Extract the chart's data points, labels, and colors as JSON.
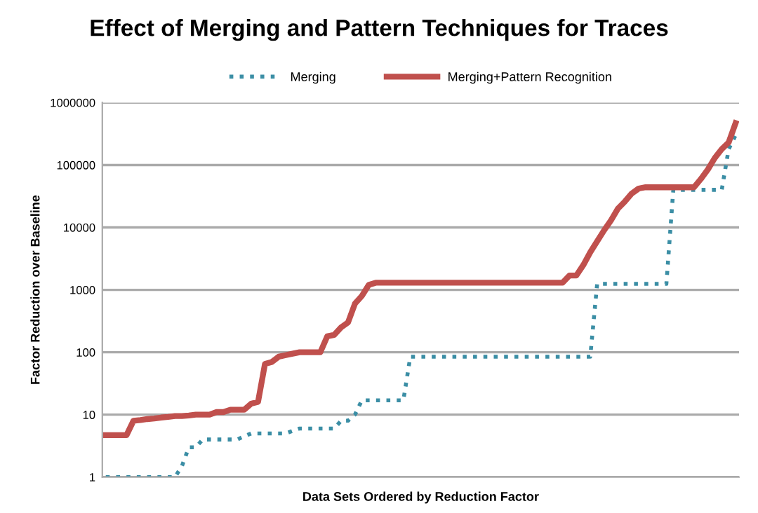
{
  "chart_data": {
    "type": "line",
    "title": "Effect of Merging and Pattern Techniques for Traces",
    "xlabel": "Data Sets Ordered by Reduction Factor",
    "ylabel": "Factor Reduction over Baseline",
    "categories": [
      null,
      null,
      null,
      null,
      null,
      null,
      null,
      null,
      null,
      null,
      null,
      null,
      null,
      null,
      null,
      null,
      null,
      null,
      null,
      null,
      null,
      null,
      null,
      null,
      null,
      null,
      null,
      null,
      null,
      null,
      null,
      null,
      null,
      null,
      null,
      null,
      null,
      null,
      null,
      null,
      null,
      null,
      null,
      null,
      null,
      null,
      null,
      null,
      null,
      null,
      null,
      null,
      null,
      null,
      null,
      null,
      null,
      null,
      null,
      null,
      null,
      null,
      null,
      null,
      null,
      null,
      null,
      null,
      null,
      null,
      null,
      null,
      null,
      null,
      null,
      null,
      null,
      null,
      null,
      null,
      null,
      null,
      null,
      null,
      null,
      null,
      null,
      null,
      null,
      null,
      null,
      null
    ],
    "series": [
      {
        "name": "Merging",
        "color": "#3b8ea5",
        "line_style": "dotted",
        "values": [
          1,
          1,
          1,
          1,
          1,
          1,
          1,
          1,
          1,
          1,
          1,
          1.5,
          3,
          3,
          4,
          4,
          4,
          4,
          4,
          4,
          4.5,
          5,
          5,
          5,
          5,
          5,
          5,
          5.5,
          6,
          6,
          6,
          6,
          6,
          6,
          8,
          8,
          10,
          17,
          17,
          17,
          17,
          17,
          17,
          17,
          85,
          85,
          85,
          85,
          85,
          85,
          85,
          85,
          85,
          85,
          85,
          85,
          85,
          85,
          85,
          85,
          85,
          85,
          85,
          85,
          85,
          85,
          85,
          85,
          85,
          85,
          85,
          1250,
          1250,
          1250,
          1250,
          1250,
          1250,
          1250,
          1250,
          1250,
          1250,
          1250,
          40000,
          40000,
          40000,
          40000,
          40000,
          40000,
          40000,
          40000,
          180000,
          300000
        ]
      },
      {
        "name": "Merging+Pattern Recognition",
        "color": "#c0504d",
        "line_style": "solid",
        "values": [
          4.7,
          4.7,
          4.7,
          4.7,
          8,
          8.2,
          8.5,
          8.7,
          9,
          9.2,
          9.5,
          9.5,
          9.7,
          10,
          10,
          10,
          11,
          11,
          12,
          12,
          12,
          15,
          16,
          65,
          70,
          85,
          90,
          95,
          100,
          100,
          100,
          100,
          180,
          190,
          250,
          300,
          600,
          800,
          1200,
          1300,
          1300,
          1300,
          1300,
          1300,
          1300,
          1300,
          1300,
          1300,
          1300,
          1300,
          1300,
          1300,
          1300,
          1300,
          1300,
          1300,
          1300,
          1300,
          1300,
          1300,
          1300,
          1300,
          1300,
          1300,
          1300,
          1300,
          1300,
          1700,
          1700,
          2500,
          4000,
          6000,
          9000,
          13000,
          20000,
          26000,
          35000,
          42000,
          44000,
          44000,
          44000,
          44000,
          44000,
          44000,
          44000,
          44000,
          60000,
          85000,
          130000,
          180000,
          230000,
          470000
        ]
      }
    ],
    "log": "y",
    "ylim": [
      1,
      1000000
    ],
    "yticks": [
      1,
      10,
      100,
      1000,
      10000,
      100000,
      1000000
    ],
    "grid": "y",
    "legend": "top",
    "marker": "none"
  }
}
